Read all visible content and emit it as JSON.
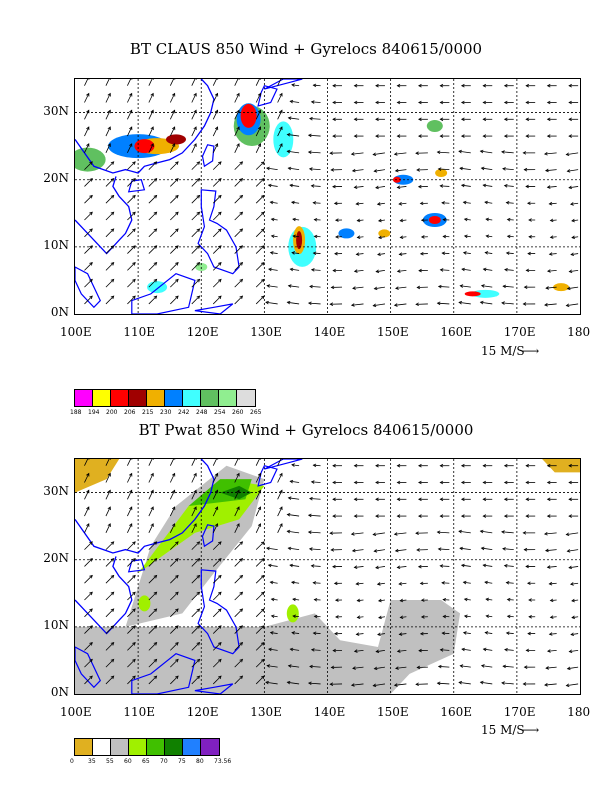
{
  "panel_top": {
    "title": "BT CLAUS 850 Wind + Gyrelocs 840615/0000",
    "x_ticks": [
      "100E",
      "110E",
      "120E",
      "130E",
      "140E",
      "150E",
      "160E",
      "170E",
      "180"
    ],
    "y_ticks": [
      "30N",
      "20N",
      "10N",
      "0N"
    ],
    "vector_scale_label": "15 M/S",
    "colorbar_values": [
      "188",
      "194",
      "200",
      "206",
      "215",
      "230",
      "242",
      "248",
      "254",
      "260",
      "265"
    ],
    "colorbar_colors": [
      "#ff00ff",
      "#ffff00",
      "#ff0000",
      "#a00000",
      "#f0b000",
      "#0080ff",
      "#40ffff",
      "#60c060",
      "#90ee90",
      "#dddddd"
    ]
  },
  "panel_bottom": {
    "title": "BT Pwat 850 Wind + Gyrelocs 840615/0000",
    "x_ticks": [
      "100E",
      "110E",
      "120E",
      "130E",
      "140E",
      "150E",
      "160E",
      "170E",
      "180"
    ],
    "y_ticks": [
      "30N",
      "20N",
      "10N",
      "0N"
    ],
    "vector_scale_label": "15 M/S",
    "colorbar_values": [
      "0",
      "35",
      "55",
      "60",
      "65",
      "70",
      "75",
      "80",
      "73.56"
    ],
    "colorbar_colors": [
      "#e0b020",
      "#ffffff",
      "#c0c0c0",
      "#a0f000",
      "#40c000",
      "#108000",
      "#2080ff",
      "#8020c0"
    ]
  },
  "map_extent": {
    "lon": [
      100,
      180
    ],
    "lat": [
      0,
      35
    ]
  }
}
